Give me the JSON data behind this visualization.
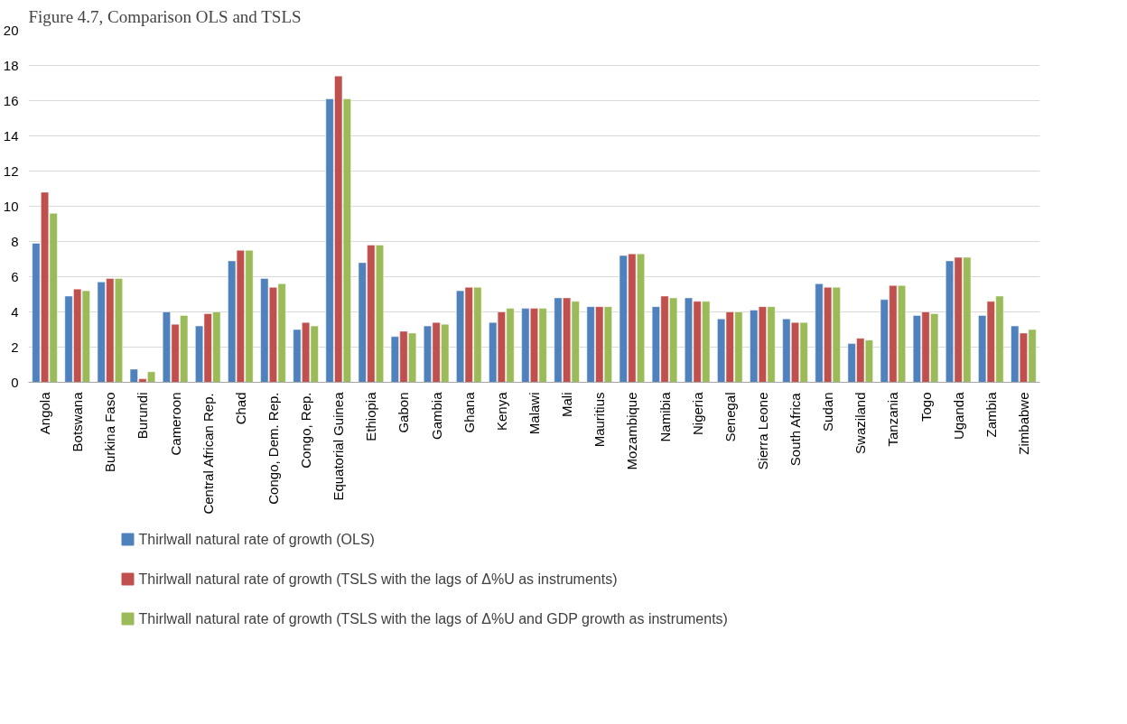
{
  "chart_data": {
    "type": "bar",
    "title": "Figure 4.7, Comparison OLS and TSLS",
    "categories": [
      "Angola",
      "Botswana",
      "Burkina Faso",
      "Burundi",
      "Cameroon",
      "Central African Rep.",
      "Chad",
      "Congo, Dem. Rep.",
      "Congo, Rep.",
      "Equatorial Guinea",
      "Ethiopia",
      "Gabon",
      "Gambia",
      "Ghana",
      "Kenya",
      "Malawi",
      "Mali",
      "Mauritius",
      "Mozambique",
      "Namibia",
      "Nigeria",
      "Senegal",
      "Sierra Leone",
      "South Africa",
      "Sudan",
      "Swaziland",
      "Tanzania",
      "Togo",
      "Uganda",
      "Zambia",
      "Zimbabwe"
    ],
    "series": [
      {
        "name": "Thirlwall natural rate of growth (OLS)",
        "color": "#4f81bd",
        "values": [
          7.9,
          4.9,
          5.7,
          0.75,
          4.0,
          3.2,
          6.9,
          5.9,
          3.0,
          16.1,
          6.8,
          2.6,
          3.2,
          5.2,
          3.4,
          4.2,
          4.8,
          4.3,
          7.2,
          4.3,
          4.8,
          3.6,
          4.1,
          3.6,
          5.6,
          2.2,
          4.7,
          3.8,
          6.9,
          3.8,
          3.2
        ]
      },
      {
        "name": "Thirlwall natural rate of growth (TSLS with the lags of Δ%U as instruments)",
        "color": "#c0504d",
        "values": [
          10.8,
          5.3,
          5.9,
          0.2,
          3.3,
          3.9,
          7.5,
          5.4,
          3.4,
          17.4,
          7.8,
          2.9,
          3.4,
          5.4,
          4.0,
          4.2,
          4.8,
          4.3,
          7.3,
          4.9,
          4.6,
          4.0,
          4.3,
          3.4,
          5.4,
          2.5,
          5.5,
          4.0,
          7.1,
          4.6,
          2.8
        ]
      },
      {
        "name": "Thirlwall natural rate of growth (TSLS with the lags of Δ%U and GDP growth as instruments)",
        "color": "#9bbb59",
        "values": [
          9.6,
          5.2,
          5.9,
          0.6,
          3.8,
          4.0,
          7.5,
          5.6,
          3.2,
          16.1,
          7.8,
          2.8,
          3.3,
          5.4,
          4.2,
          4.2,
          4.6,
          4.3,
          7.3,
          4.8,
          4.6,
          4.0,
          4.3,
          3.4,
          5.4,
          2.4,
          5.5,
          3.9,
          7.1,
          4.9,
          3.0
        ]
      }
    ],
    "ylim": [
      0,
      20
    ],
    "yticks": [
      0,
      2,
      4,
      6,
      8,
      10,
      12,
      14,
      16,
      18,
      20
    ],
    "grid": "y",
    "legend": "bottom"
  }
}
